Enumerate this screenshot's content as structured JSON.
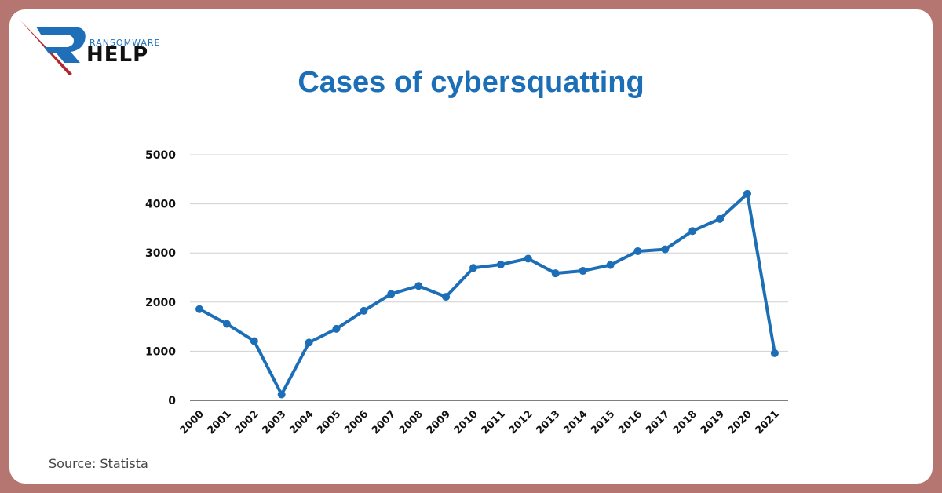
{
  "logo": {
    "subtitle": "RANSOMWARE",
    "name": "HELP",
    "colors": {
      "blue": "#1f6fb8",
      "red": "#b3262b",
      "text": "#111111"
    }
  },
  "title": "Cases of cybersquatting",
  "source": "Source: Statista",
  "colors": {
    "frame": "#b57571",
    "background": "#ffffff",
    "title": "#1c6fb7",
    "series": "#1c6fb7",
    "grid": "#d0d0d0",
    "axis": "#555555"
  },
  "chart_data": {
    "type": "line",
    "title": "Cases of cybersquatting",
    "xlabel": "",
    "ylabel": "",
    "x": [
      "2000",
      "2001",
      "2002",
      "2003",
      "2004",
      "2005",
      "2006",
      "2007",
      "2008",
      "2009",
      "2010",
      "2011",
      "2012",
      "2013",
      "2014",
      "2015",
      "2016",
      "2017",
      "2018",
      "2019",
      "2020",
      "2021"
    ],
    "series": [
      {
        "name": "Cases of cybersquatting",
        "values": [
          1857,
          1557,
          1207,
          120,
          1176,
          1456,
          1823,
          2166,
          2329,
          2107,
          2696,
          2764,
          2884,
          2585,
          2635,
          2754,
          3036,
          3074,
          3447,
          3693,
          4204,
          960
        ]
      }
    ],
    "yticks": [
      0,
      1000,
      2000,
      3000,
      4000,
      5000
    ],
    "ylim": [
      0,
      5000
    ],
    "grid": true,
    "markers": true,
    "legend": "none",
    "source": "Statista"
  }
}
